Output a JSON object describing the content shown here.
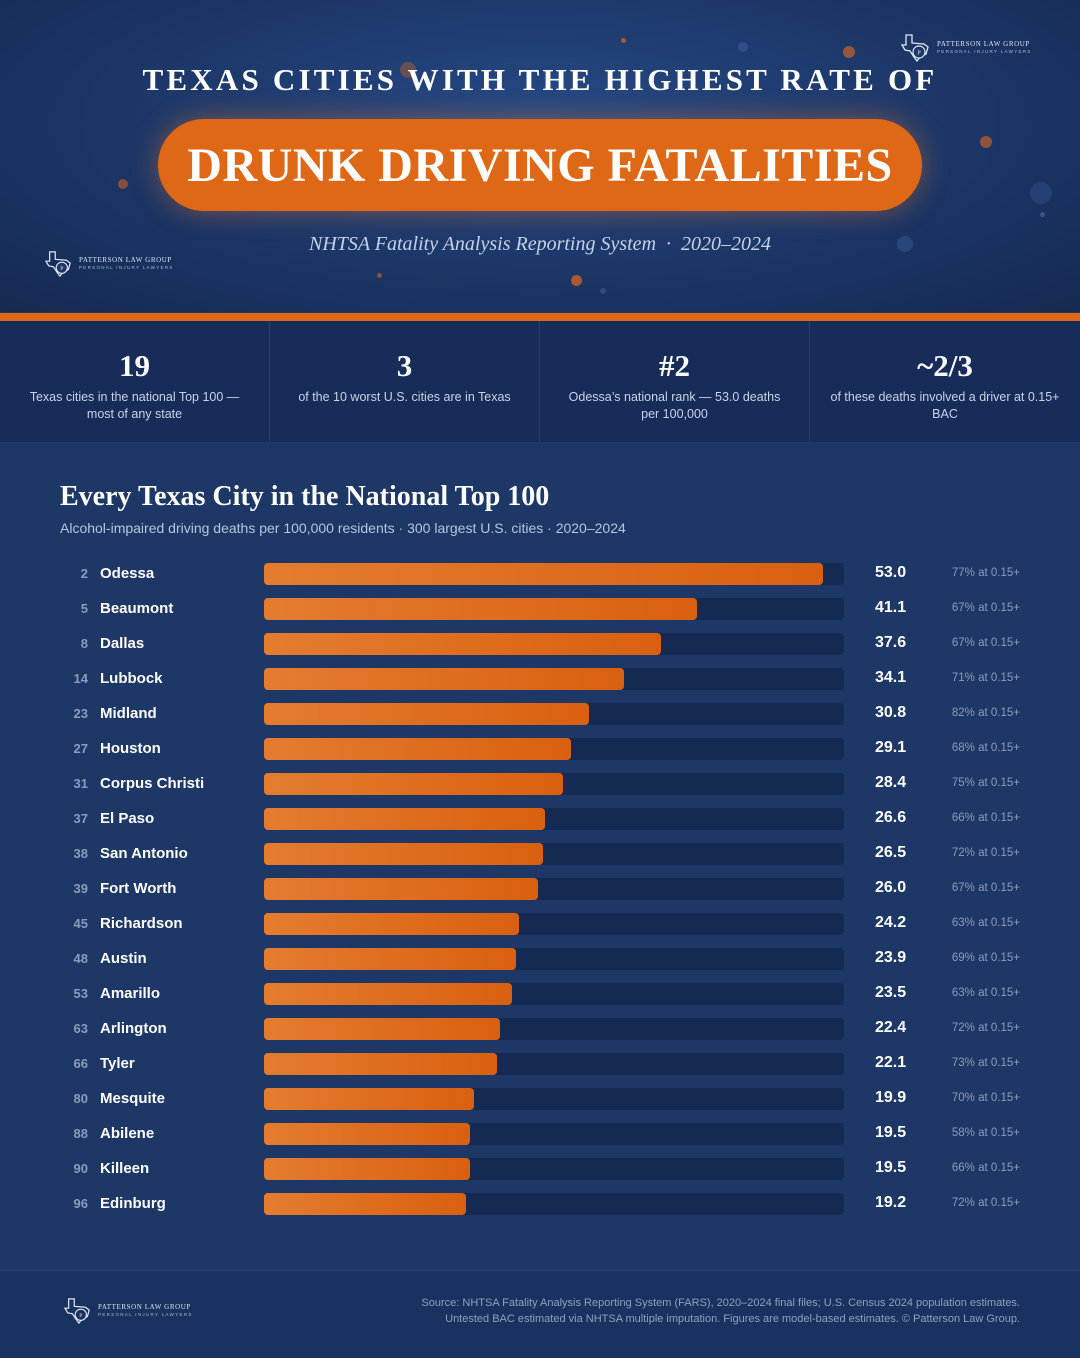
{
  "brand": {
    "name": "PATTERSON LAW GROUP",
    "tagline": "PERSONAL INJURY LAWYERS"
  },
  "header": {
    "title": "TEXAS CITIES WITH THE HIGHEST RATE OF",
    "highlight": "DRUNK DRIVING FATALITIES",
    "source_line": "NHTSA Fatality Analysis Reporting System",
    "separator": "·",
    "years": "2020–2024"
  },
  "stats": [
    {
      "value": "19",
      "label": "Texas cities in the national Top 100 — most of any state"
    },
    {
      "value": "3",
      "label": "of the 10 worst U.S. cities are in Texas"
    },
    {
      "value": "#2",
      "label": "Odessa’s national rank — 53.0 deaths per 100,000"
    },
    {
      "value": "~2/3",
      "label": "of these deaths involved a driver at 0.15+ BAC"
    }
  ],
  "section": {
    "title": "Every Texas City in the National Top 100",
    "subtitle": "Alcohol-impaired driving deaths per 100,000 residents · 300 largest U.S. cities · 2020–2024"
  },
  "chart_data": {
    "type": "bar",
    "orientation": "horizontal",
    "title": "Every Texas City in the National Top 100",
    "subtitle": "Alcohol-impaired driving deaths per 100,000 residents · 300 largest U.S. cities · 2020–2024",
    "xlim": [
      0,
      55
    ],
    "grid": false,
    "rows": [
      {
        "rank": "2",
        "city": "Odessa",
        "value": 53.0,
        "value_label": "53.0",
        "bac": "77% at 0.15+"
      },
      {
        "rank": "5",
        "city": "Beaumont",
        "value": 41.1,
        "value_label": "41.1",
        "bac": "67% at 0.15+"
      },
      {
        "rank": "8",
        "city": "Dallas",
        "value": 37.6,
        "value_label": "37.6",
        "bac": "67% at 0.15+"
      },
      {
        "rank": "14",
        "city": "Lubbock",
        "value": 34.1,
        "value_label": "34.1",
        "bac": "71% at 0.15+"
      },
      {
        "rank": "23",
        "city": "Midland",
        "value": 30.8,
        "value_label": "30.8",
        "bac": "82% at 0.15+"
      },
      {
        "rank": "27",
        "city": "Houston",
        "value": 29.1,
        "value_label": "29.1",
        "bac": "68% at 0.15+"
      },
      {
        "rank": "31",
        "city": "Corpus Christi",
        "value": 28.4,
        "value_label": "28.4",
        "bac": "75% at 0.15+"
      },
      {
        "rank": "37",
        "city": "El Paso",
        "value": 26.6,
        "value_label": "26.6",
        "bac": "66% at 0.15+"
      },
      {
        "rank": "38",
        "city": "San Antonio",
        "value": 26.5,
        "value_label": "26.5",
        "bac": "72% at 0.15+"
      },
      {
        "rank": "39",
        "city": "Fort Worth",
        "value": 26.0,
        "value_label": "26.0",
        "bac": "67% at 0.15+"
      },
      {
        "rank": "45",
        "city": "Richardson",
        "value": 24.2,
        "value_label": "24.2",
        "bac": "63% at 0.15+"
      },
      {
        "rank": "48",
        "city": "Austin",
        "value": 23.9,
        "value_label": "23.9",
        "bac": "69% at 0.15+"
      },
      {
        "rank": "53",
        "city": "Amarillo",
        "value": 23.5,
        "value_label": "23.5",
        "bac": "63% at 0.15+"
      },
      {
        "rank": "63",
        "city": "Arlington",
        "value": 22.4,
        "value_label": "22.4",
        "bac": "72% at 0.15+"
      },
      {
        "rank": "66",
        "city": "Tyler",
        "value": 22.1,
        "value_label": "22.1",
        "bac": "73% at 0.15+"
      },
      {
        "rank": "80",
        "city": "Mesquite",
        "value": 19.9,
        "value_label": "19.9",
        "bac": "70% at 0.15+"
      },
      {
        "rank": "88",
        "city": "Abilene",
        "value": 19.5,
        "value_label": "19.5",
        "bac": "58% at 0.15+"
      },
      {
        "rank": "90",
        "city": "Killeen",
        "value": 19.5,
        "value_label": "19.5",
        "bac": "66% at 0.15+"
      },
      {
        "rank": "96",
        "city": "Edinburg",
        "value": 19.2,
        "value_label": "19.2",
        "bac": "72% at 0.15+"
      }
    ]
  },
  "footer": {
    "line1": "Source: NHTSA Fatality Analysis Reporting System (FARS), 2020–2024 final files; U.S. Census 2024 population estimates.",
    "line2": "Untested BAC estimated via NHTSA multiple imputation. Figures are model-based estimates. © Patterson Law Group."
  },
  "colors": {
    "accent": "#df6816",
    "background": "#1d3766",
    "track": "#142a52",
    "muted_text": "#8d9cba"
  },
  "icons": [
    "texas-shield-logo-icon"
  ]
}
